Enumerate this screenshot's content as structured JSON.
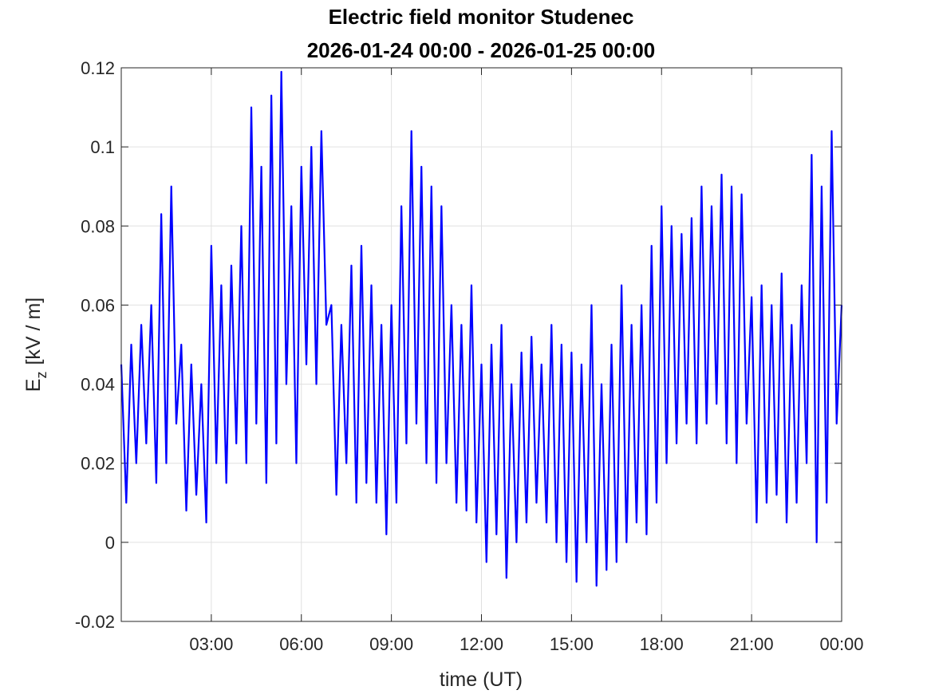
{
  "chart_data": {
    "type": "line",
    "title": "Electric field monitor Studenec",
    "subtitle": "2026-01-24 00:00 - 2026-01-25 00:00",
    "xlabel": "time (UT)",
    "ylabel": {
      "base": "E",
      "subscript": "z",
      "unit": "[kV / m]"
    },
    "xlim": [
      0,
      24
    ],
    "xticks": [
      {
        "value": 3,
        "label": "03:00"
      },
      {
        "value": 6,
        "label": "06:00"
      },
      {
        "value": 9,
        "label": "09:00"
      },
      {
        "value": 12,
        "label": "12:00"
      },
      {
        "value": 15,
        "label": "15:00"
      },
      {
        "value": 18,
        "label": "18:00"
      },
      {
        "value": 21,
        "label": "21:00"
      },
      {
        "value": 24,
        "label": "00:00"
      }
    ],
    "ylim": [
      -0.02,
      0.12
    ],
    "yticks": [
      -0.02,
      0,
      0.02,
      0.04,
      0.06,
      0.08,
      0.1,
      0.12
    ],
    "grid": true,
    "x": [
      0,
      0.167,
      0.333,
      0.5,
      0.667,
      0.833,
      1,
      1.167,
      1.333,
      1.5,
      1.667,
      1.833,
      2,
      2.167,
      2.333,
      2.5,
      2.667,
      2.833,
      3,
      3.167,
      3.333,
      3.5,
      3.667,
      3.833,
      4,
      4.167,
      4.333,
      4.5,
      4.667,
      4.833,
      5,
      5.167,
      5.333,
      5.5,
      5.667,
      5.833,
      6,
      6.167,
      6.333,
      6.5,
      6.667,
      6.833,
      7,
      7.167,
      7.333,
      7.5,
      7.667,
      7.833,
      8,
      8.167,
      8.333,
      8.5,
      8.667,
      8.833,
      9,
      9.167,
      9.333,
      9.5,
      9.667,
      9.833,
      10,
      10.167,
      10.333,
      10.5,
      10.667,
      10.833,
      11,
      11.167,
      11.333,
      11.5,
      11.667,
      11.833,
      12,
      12.167,
      12.333,
      12.5,
      12.667,
      12.833,
      13,
      13.167,
      13.333,
      13.5,
      13.667,
      13.833,
      14,
      14.167,
      14.333,
      14.5,
      14.667,
      14.833,
      15,
      15.167,
      15.333,
      15.5,
      15.667,
      15.833,
      16,
      16.167,
      16.333,
      16.5,
      16.667,
      16.833,
      17,
      17.167,
      17.333,
      17.5,
      17.667,
      17.833,
      18,
      18.167,
      18.333,
      18.5,
      18.667,
      18.833,
      19,
      19.167,
      19.333,
      19.5,
      19.667,
      19.833,
      20,
      20.167,
      20.333,
      20.5,
      20.667,
      20.833,
      21,
      21.167,
      21.333,
      21.5,
      21.667,
      21.833,
      22,
      22.167,
      22.333,
      22.5,
      22.667,
      22.833,
      23,
      23.167,
      23.333,
      23.5,
      23.667,
      23.833,
      24
    ],
    "series": [
      {
        "color": "#0000ff",
        "values": [
          0.045,
          0.01,
          0.05,
          0.02,
          0.055,
          0.025,
          0.06,
          0.015,
          0.083,
          0.02,
          0.09,
          0.03,
          0.05,
          0.008,
          0.045,
          0.012,
          0.04,
          0.005,
          0.075,
          0.02,
          0.065,
          0.015,
          0.07,
          0.025,
          0.08,
          0.02,
          0.11,
          0.03,
          0.095,
          0.015,
          0.113,
          0.025,
          0.119,
          0.04,
          0.085,
          0.02,
          0.095,
          0.045,
          0.1,
          0.04,
          0.104,
          0.055,
          0.06,
          0.012,
          0.055,
          0.02,
          0.07,
          0.01,
          0.075,
          0.015,
          0.065,
          0.01,
          0.055,
          0.002,
          0.06,
          0.01,
          0.085,
          0.025,
          0.104,
          0.03,
          0.095,
          0.02,
          0.09,
          0.015,
          0.085,
          0.02,
          0.06,
          0.01,
          0.055,
          0.008,
          0.065,
          0.005,
          0.045,
          -0.005,
          0.05,
          0.002,
          0.055,
          -0.009,
          0.04,
          0.0,
          0.048,
          0.005,
          0.052,
          0.01,
          0.045,
          0.005,
          0.055,
          0.0,
          0.05,
          -0.005,
          0.048,
          -0.01,
          0.045,
          0.0,
          0.06,
          -0.011,
          0.04,
          -0.007,
          0.05,
          -0.005,
          0.065,
          0.0,
          0.055,
          0.005,
          0.06,
          0.002,
          0.075,
          0.01,
          0.085,
          0.02,
          0.08,
          0.025,
          0.078,
          0.03,
          0.082,
          0.025,
          0.09,
          0.03,
          0.085,
          0.035,
          0.093,
          0.025,
          0.09,
          0.02,
          0.088,
          0.03,
          0.062,
          0.005,
          0.065,
          0.01,
          0.06,
          0.012,
          0.068,
          0.005,
          0.055,
          0.01,
          0.065,
          0.02,
          0.098,
          0.0,
          0.09,
          0.01,
          0.104,
          0.03,
          0.06
        ]
      }
    ]
  }
}
